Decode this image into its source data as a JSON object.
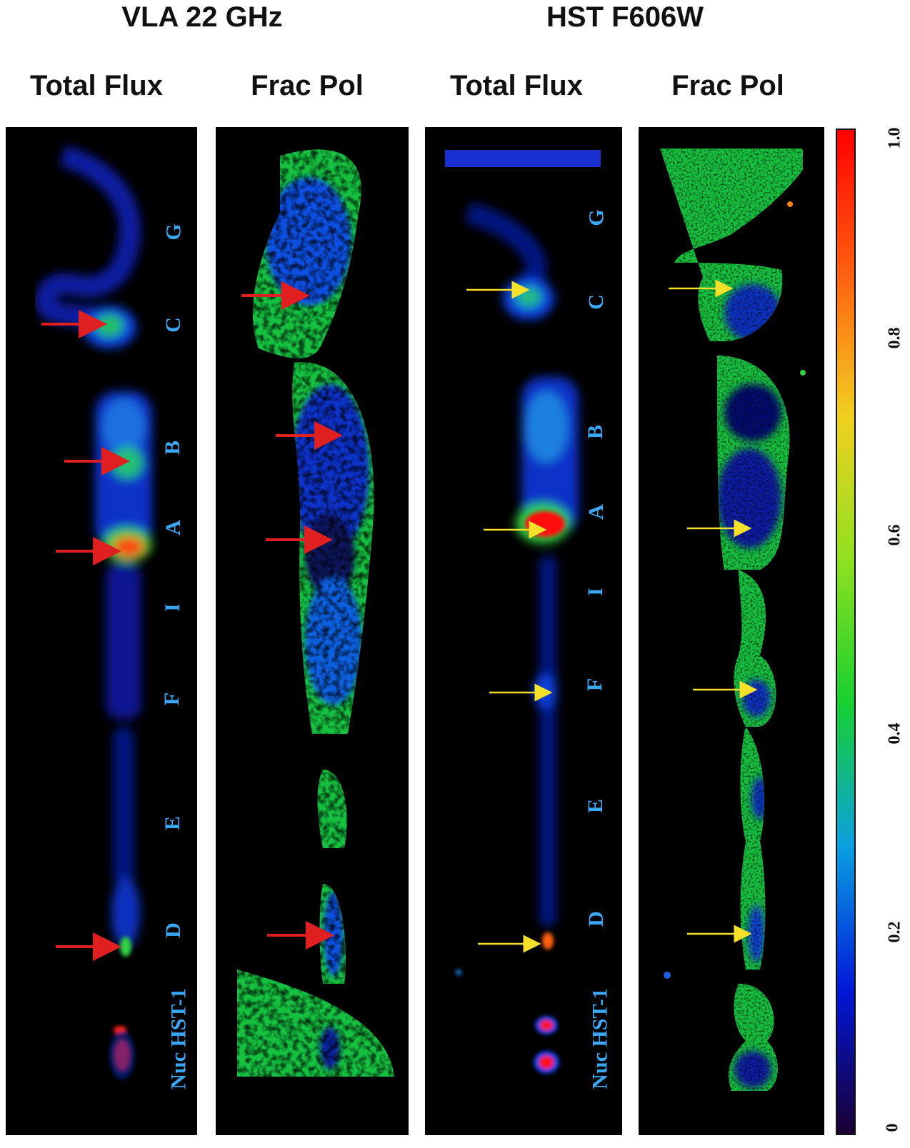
{
  "figure": {
    "groups": [
      {
        "title": "VLA 22 GHz"
      },
      {
        "title": "HST F606W"
      }
    ],
    "panels": [
      {
        "title": "Total Flux",
        "arrow_color": "#e02020"
      },
      {
        "title": "Frac Pol",
        "arrow_color": "#e02020"
      },
      {
        "title": "Total Flux",
        "arrow_color": "#f5e02a"
      },
      {
        "title": "Frac Pol",
        "arrow_color": "#f5e02a"
      }
    ],
    "knot_labels": [
      "G",
      "C",
      "B",
      "A",
      "I",
      "F",
      "E",
      "D",
      "Nuc HST-1"
    ],
    "colorbar": {
      "ticks": [
        "1.0",
        "0.8",
        "0.6",
        "0.4",
        "0.2",
        "0"
      ],
      "colors": [
        "#1a0033",
        "#0018d8",
        "#0aa0e0",
        "#16d030",
        "#8fe020",
        "#f0d020",
        "#ff6010",
        "#ff0000"
      ]
    },
    "label_color": "#3aa8f5"
  }
}
